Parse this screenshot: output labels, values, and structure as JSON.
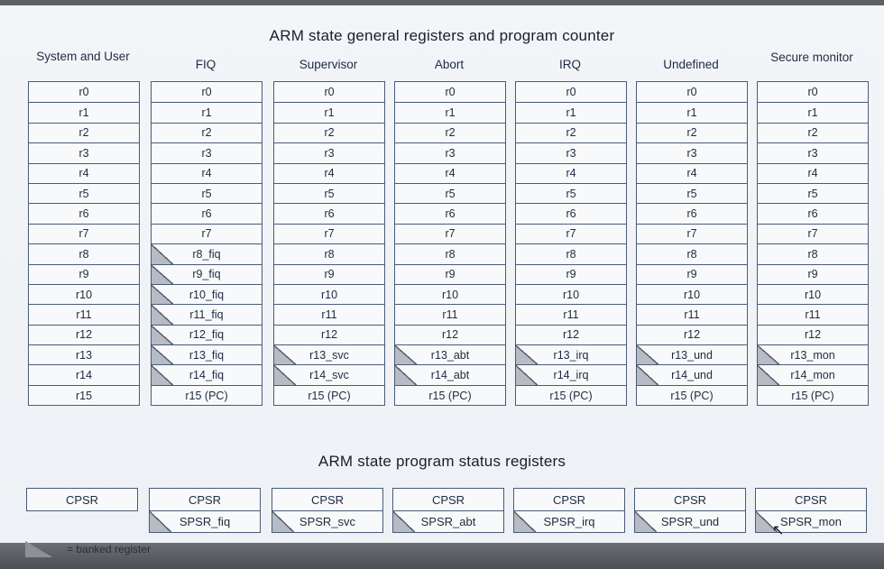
{
  "title_regs": "ARM state general registers and program counter",
  "title_psr": "ARM state program status registers",
  "legend": "= banked register",
  "modes": [
    {
      "name": "System and User",
      "regs": [
        "r0",
        "r1",
        "r2",
        "r3",
        "r4",
        "r5",
        "r6",
        "r7",
        "r8",
        "r9",
        "r10",
        "r11",
        "r12",
        "r13",
        "r14",
        "r15"
      ],
      "banked_from": 99,
      "psr": [
        "CPSR"
      ]
    },
    {
      "name": "FIQ",
      "regs": [
        "r0",
        "r1",
        "r2",
        "r3",
        "r4",
        "r5",
        "r6",
        "r7",
        "r8_fiq",
        "r9_fiq",
        "r10_fiq",
        "r11_fiq",
        "r12_fiq",
        "r13_fiq",
        "r14_fiq",
        "r15 (PC)"
      ],
      "banked_from": 8,
      "psr": [
        "CPSR",
        "SPSR_fiq"
      ]
    },
    {
      "name": "Supervisor",
      "regs": [
        "r0",
        "r1",
        "r2",
        "r3",
        "r4",
        "r5",
        "r6",
        "r7",
        "r8",
        "r9",
        "r10",
        "r11",
        "r12",
        "r13_svc",
        "r14_svc",
        "r15 (PC)"
      ],
      "banked_from": 13,
      "psr": [
        "CPSR",
        "SPSR_svc"
      ]
    },
    {
      "name": "Abort",
      "regs": [
        "r0",
        "r1",
        "r2",
        "r3",
        "r4",
        "r5",
        "r6",
        "r7",
        "r8",
        "r9",
        "r10",
        "r11",
        "r12",
        "r13_abt",
        "r14_abt",
        "r15 (PC)"
      ],
      "banked_from": 13,
      "psr": [
        "CPSR",
        "SPSR_abt"
      ]
    },
    {
      "name": "IRQ",
      "regs": [
        "r0",
        "r1",
        "r2",
        "r3",
        "r4",
        "r5",
        "r6",
        "r7",
        "r8",
        "r9",
        "r10",
        "r11",
        "r12",
        "r13_irq",
        "r14_irq",
        "r15 (PC)"
      ],
      "banked_from": 13,
      "psr": [
        "CPSR",
        "SPSR_irq"
      ]
    },
    {
      "name": "Undefined",
      "regs": [
        "r0",
        "r1",
        "r2",
        "r3",
        "r4",
        "r5",
        "r6",
        "r7",
        "r8",
        "r9",
        "r10",
        "r11",
        "r12",
        "r13_und",
        "r14_und",
        "r15 (PC)"
      ],
      "banked_from": 13,
      "psr": [
        "CPSR",
        "SPSR_und"
      ]
    },
    {
      "name": "Secure monitor",
      "regs": [
        "r0",
        "r1",
        "r2",
        "r3",
        "r4",
        "r5",
        "r6",
        "r7",
        "r8",
        "r9",
        "r10",
        "r11",
        "r12",
        "r13_mon",
        "r14_mon",
        "r15 (PC)"
      ],
      "banked_from": 13,
      "psr": [
        "CPSR",
        "SPSR_mon"
      ]
    }
  ],
  "colors": {
    "border": "#4a5b78",
    "banked_fill": "#b6bbc4",
    "background": "#f1f3f6"
  }
}
